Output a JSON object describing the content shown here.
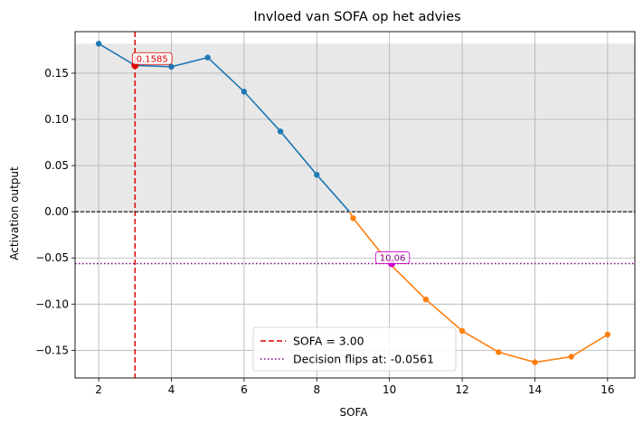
{
  "chart_data": {
    "type": "line",
    "title": "Invloed van SOFA op het advies",
    "xlabel": "SOFA",
    "ylabel": "Activation output",
    "xlim": [
      1.35,
      16.75
    ],
    "ylim": [
      -0.18,
      0.195
    ],
    "xticks": [
      2,
      4,
      6,
      8,
      10,
      12,
      14,
      16
    ],
    "yticks": [
      -0.15,
      -0.1,
      -0.05,
      0.0,
      0.05,
      0.1,
      0.15
    ],
    "ytick_labels": [
      "−0.15",
      "−0.10",
      "−0.05",
      "0.00",
      "0.05",
      "0.10",
      "0.15"
    ],
    "grid": true,
    "shaded_region": {
      "y_from": 0.0,
      "y_to": 0.182,
      "color": "#e8e8e8"
    },
    "series": [
      {
        "segment": "positive",
        "color": "#1f77b4",
        "x": [
          2,
          3,
          4,
          5,
          6,
          7,
          8,
          8.9
        ],
        "y": [
          0.182,
          0.1585,
          0.157,
          0.167,
          0.13,
          0.087,
          0.04,
          0.0
        ],
        "markers_x": [
          2,
          4,
          5,
          6,
          7,
          8
        ]
      },
      {
        "segment": "negative",
        "color": "#ff7f0e",
        "x": [
          8.9,
          9,
          10,
          11,
          12,
          13,
          14,
          15,
          16
        ],
        "y": [
          0.0,
          -0.007,
          -0.0561,
          -0.095,
          -0.129,
          -0.152,
          -0.163,
          -0.157,
          -0.133
        ],
        "markers_x": [
          9,
          11,
          12,
          13,
          14,
          15,
          16
        ]
      }
    ],
    "reference_lines": [
      {
        "orientation": "vertical",
        "value": 3.0,
        "color": "#dd0000",
        "style": "dashed",
        "legend": "SOFA = 3.00"
      },
      {
        "orientation": "horizontal",
        "value": -0.0561,
        "color": "#800080",
        "style": "dotted",
        "legend": "Decision flips at: -0.0561"
      },
      {
        "orientation": "horizontal",
        "value": 0.0,
        "color": "#000000",
        "style": "dashed",
        "legend": ""
      }
    ],
    "highlight_points": [
      {
        "x": 3.0,
        "y": 0.1585,
        "color": "#dd0000",
        "label": "0.1585"
      },
      {
        "x": 10.06,
        "y": -0.0561,
        "color": "#cc00cc",
        "label": "10.06"
      }
    ],
    "legend": {
      "placement": "bottom-center",
      "entries": [
        "SOFA = 3.00",
        "Decision flips at: -0.0561"
      ]
    }
  }
}
